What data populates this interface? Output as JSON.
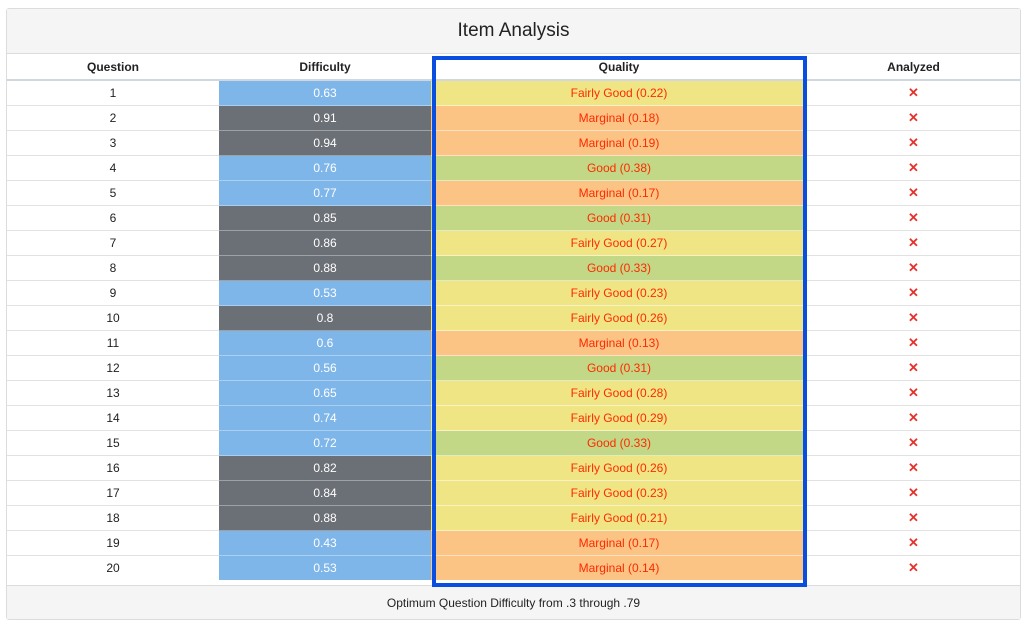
{
  "title": "Item Analysis",
  "columns": {
    "question": "Question",
    "difficulty": "Difficulty",
    "quality": "Quality",
    "analyzed": "Analyzed"
  },
  "footer": "Optimum Question Difficulty from .3 through .79",
  "colors": {
    "difficulty_optimal": "#7eb6ea",
    "difficulty_high": "#6b6f76",
    "quality_fairly_good": "#f0e584",
    "quality_marginal": "#fbc384",
    "quality_good": "#c3d886",
    "highlight_border": "#0a4ee0"
  },
  "analyzed_icon": "x-icon",
  "rows": [
    {
      "q": "1",
      "d": "0.63",
      "qual": "Fairly Good (0.22)",
      "grade": "fairly_good",
      "band": "optimal",
      "analyzed": "✕"
    },
    {
      "q": "2",
      "d": "0.91",
      "qual": "Marginal (0.18)",
      "grade": "marginal",
      "band": "high",
      "analyzed": "✕"
    },
    {
      "q": "3",
      "d": "0.94",
      "qual": "Marginal (0.19)",
      "grade": "marginal",
      "band": "high",
      "analyzed": "✕"
    },
    {
      "q": "4",
      "d": "0.76",
      "qual": "Good (0.38)",
      "grade": "good",
      "band": "optimal",
      "analyzed": "✕"
    },
    {
      "q": "5",
      "d": "0.77",
      "qual": "Marginal (0.17)",
      "grade": "marginal",
      "band": "optimal",
      "analyzed": "✕"
    },
    {
      "q": "6",
      "d": "0.85",
      "qual": "Good (0.31)",
      "grade": "good",
      "band": "high",
      "analyzed": "✕"
    },
    {
      "q": "7",
      "d": "0.86",
      "qual": "Fairly Good (0.27)",
      "grade": "fairly_good",
      "band": "high",
      "analyzed": "✕"
    },
    {
      "q": "8",
      "d": "0.88",
      "qual": "Good (0.33)",
      "grade": "good",
      "band": "high",
      "analyzed": "✕"
    },
    {
      "q": "9",
      "d": "0.53",
      "qual": "Fairly Good (0.23)",
      "grade": "fairly_good",
      "band": "optimal",
      "analyzed": "✕"
    },
    {
      "q": "10",
      "d": "0.8",
      "qual": "Fairly Good (0.26)",
      "grade": "fairly_good",
      "band": "high",
      "analyzed": "✕"
    },
    {
      "q": "11",
      "d": "0.6",
      "qual": "Marginal (0.13)",
      "grade": "marginal",
      "band": "optimal",
      "analyzed": "✕"
    },
    {
      "q": "12",
      "d": "0.56",
      "qual": "Good (0.31)",
      "grade": "good",
      "band": "optimal",
      "analyzed": "✕"
    },
    {
      "q": "13",
      "d": "0.65",
      "qual": "Fairly Good (0.28)",
      "grade": "fairly_good",
      "band": "optimal",
      "analyzed": "✕"
    },
    {
      "q": "14",
      "d": "0.74",
      "qual": "Fairly Good (0.29)",
      "grade": "fairly_good",
      "band": "optimal",
      "analyzed": "✕"
    },
    {
      "q": "15",
      "d": "0.72",
      "qual": "Good (0.33)",
      "grade": "good",
      "band": "optimal",
      "analyzed": "✕"
    },
    {
      "q": "16",
      "d": "0.82",
      "qual": "Fairly Good (0.26)",
      "grade": "fairly_good",
      "band": "high",
      "analyzed": "✕"
    },
    {
      "q": "17",
      "d": "0.84",
      "qual": "Fairly Good (0.23)",
      "grade": "fairly_good",
      "band": "high",
      "analyzed": "✕"
    },
    {
      "q": "18",
      "d": "0.88",
      "qual": "Fairly Good (0.21)",
      "grade": "fairly_good",
      "band": "high",
      "analyzed": "✕"
    },
    {
      "q": "19",
      "d": "0.43",
      "qual": "Marginal (0.17)",
      "grade": "marginal",
      "band": "optimal",
      "analyzed": "✕"
    },
    {
      "q": "20",
      "d": "0.53",
      "qual": "Marginal (0.14)",
      "grade": "marginal",
      "band": "optimal",
      "analyzed": "✕"
    }
  ]
}
